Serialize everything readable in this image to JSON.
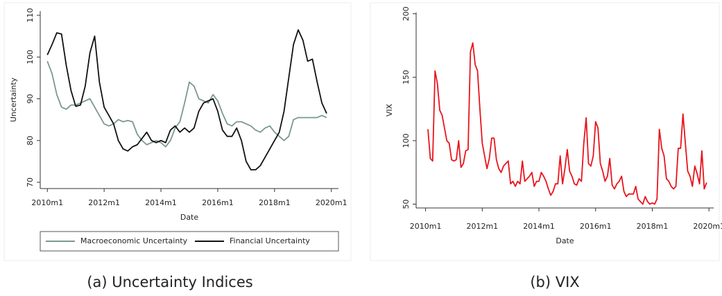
{
  "chart_data": [
    {
      "type": "line",
      "caption": "(a) Uncertainty Indices",
      "xlabel": "Date",
      "ylabel": "Uncertainty",
      "x": [
        "2010m1",
        "2010m3",
        "2010m5",
        "2010m7",
        "2010m9",
        "2010m11",
        "2011m1",
        "2011m3",
        "2011m5",
        "2011m7",
        "2011m9",
        "2011m11",
        "2012m1",
        "2012m3",
        "2012m5",
        "2012m7",
        "2012m9",
        "2012m11",
        "2013m1",
        "2013m3",
        "2013m5",
        "2013m7",
        "2013m9",
        "2013m11",
        "2014m1",
        "2014m3",
        "2014m5",
        "2014m7",
        "2014m9",
        "2014m11",
        "2015m1",
        "2015m3",
        "2015m5",
        "2015m7",
        "2015m9",
        "2015m11",
        "2016m1",
        "2016m3",
        "2016m5",
        "2016m7",
        "2016m9",
        "2016m11",
        "2017m1",
        "2017m3",
        "2017m5",
        "2017m7",
        "2017m9",
        "2017m11",
        "2018m1",
        "2018m3",
        "2018m5",
        "2018m7",
        "2018m9",
        "2018m11",
        "2019m1",
        "2019m3",
        "2019m5",
        "2019m7",
        "2019m9",
        "2019m11"
      ],
      "series": [
        {
          "name": "Macroeconomic Uncertainty",
          "color": "#7a9a8a",
          "values": [
            99,
            96,
            91,
            88,
            87.5,
            88.5,
            88.5,
            89,
            89.5,
            90,
            88,
            86,
            84,
            83.5,
            84,
            85,
            84.5,
            84.8,
            84.5,
            81.5,
            80,
            79,
            79.5,
            80,
            79.5,
            78.5,
            80,
            83,
            84.5,
            89,
            94,
            93,
            90,
            89.5,
            89,
            91,
            89.5,
            86.5,
            84,
            83.5,
            84.5,
            84.5,
            84,
            83.5,
            82.5,
            82,
            83,
            83.5,
            82,
            81,
            80,
            81,
            85,
            85.5,
            85.5,
            85.5,
            85.5,
            85.5,
            86,
            85.5
          ]
        },
        {
          "name": "Financial Uncertainty",
          "color": "#111111",
          "values": [
            100.5,
            103,
            105.8,
            105.5,
            98,
            92,
            88.2,
            88.5,
            93,
            101,
            105,
            94,
            88,
            86,
            84,
            80,
            78,
            77.5,
            78.5,
            79,
            80.5,
            82,
            80,
            79.5,
            80,
            79.5,
            82.5,
            83.5,
            82,
            83,
            82,
            83,
            87,
            89,
            89.5,
            90,
            87,
            82.5,
            81,
            81,
            83,
            80,
            75,
            73,
            73,
            74,
            76,
            78,
            80,
            82,
            87,
            95,
            103,
            106.5,
            104,
            99,
            99.5,
            94,
            89,
            86.5
          ]
        }
      ],
      "xlim": [
        "2009m10",
        "2020m4"
      ],
      "xticks": [
        "2010m1",
        "2012m1",
        "2014m1",
        "2016m1",
        "2018m1",
        "2020m1"
      ],
      "ylim": [
        68.5,
        111
      ],
      "yticks": [
        70,
        80,
        90,
        100,
        110
      ],
      "legend": "bottom"
    },
    {
      "type": "line",
      "caption": "(b) VIX",
      "xlabel": "Date",
      "ylabel": "VIX",
      "x": [
        "2010m2",
        "2010m3",
        "2010m4",
        "2010m5",
        "2010m6",
        "2010m7",
        "2010m8",
        "2010m9",
        "2010m10",
        "2010m11",
        "2010m12",
        "2011m1",
        "2011m2",
        "2011m3",
        "2011m4",
        "2011m5",
        "2011m6",
        "2011m7",
        "2011m8",
        "2011m9",
        "2011m10",
        "2011m11",
        "2011m12",
        "2012m1",
        "2012m2",
        "2012m3",
        "2012m4",
        "2012m5",
        "2012m6",
        "2012m7",
        "2012m8",
        "2012m9",
        "2012m10",
        "2012m11",
        "2012m12",
        "2013m1",
        "2013m2",
        "2013m3",
        "2013m4",
        "2013m5",
        "2013m6",
        "2013m7",
        "2013m8",
        "2013m9",
        "2013m10",
        "2013m11",
        "2013m12",
        "2014m1",
        "2014m2",
        "2014m3",
        "2014m4",
        "2014m5",
        "2014m6",
        "2014m7",
        "2014m8",
        "2014m9",
        "2014m10",
        "2014m11",
        "2014m12",
        "2015m1",
        "2015m2",
        "2015m3",
        "2015m4",
        "2015m5",
        "2015m6",
        "2015m7",
        "2015m8",
        "2015m9",
        "2015m10",
        "2015m11",
        "2015m12",
        "2016m1",
        "2016m2",
        "2016m3",
        "2016m4",
        "2016m5",
        "2016m6",
        "2016m7",
        "2016m8",
        "2016m9",
        "2016m10",
        "2016m11",
        "2016m12",
        "2017m1",
        "2017m2",
        "2017m3",
        "2017m4",
        "2017m5",
        "2017m6",
        "2017m7",
        "2017m8",
        "2017m9",
        "2017m10",
        "2017m11",
        "2017m12",
        "2018m1",
        "2018m2",
        "2018m3",
        "2018m4",
        "2018m5",
        "2018m6",
        "2018m7",
        "2018m8",
        "2018m9",
        "2018m10",
        "2018m11",
        "2018m12",
        "2019m1",
        "2019m2",
        "2019m3",
        "2019m4",
        "2019m5",
        "2019m6",
        "2019m7",
        "2019m8",
        "2019m9",
        "2019m10",
        "2019m11",
        "2019m12"
      ],
      "series": [
        {
          "name": "VIX",
          "color": "#e8141c",
          "values": [
            109,
            86,
            84,
            155,
            145,
            124,
            120,
            110,
            100,
            98,
            85,
            84,
            85,
            100,
            79,
            82,
            92,
            93,
            170,
            177,
            160,
            155,
            125,
            98,
            88,
            78,
            86,
            102,
            102,
            85,
            78,
            75,
            80,
            82,
            84,
            66,
            68,
            64,
            68,
            66,
            84,
            68,
            70,
            72,
            75,
            64,
            68,
            68,
            75,
            72,
            68,
            62,
            57,
            60,
            66,
            66,
            88,
            66,
            78,
            93,
            76,
            72,
            66,
            65,
            70,
            68,
            98,
            118,
            82,
            80,
            88,
            115,
            110,
            82,
            76,
            68,
            72,
            86,
            65,
            62,
            66,
            68,
            72,
            60,
            56,
            58,
            58,
            58,
            64,
            54,
            52,
            50,
            56,
            52,
            50,
            51,
            50,
            54,
            109,
            94,
            88,
            70,
            68,
            64,
            62,
            64,
            94,
            94,
            121,
            98,
            76,
            72,
            64,
            80,
            74,
            66,
            92,
            62,
            67
          ]
        }
      ],
      "xlim": [
        "2009m9",
        "2020m3"
      ],
      "xticks": [
        "2010m1",
        "2012m1",
        "2014m1",
        "2016m1",
        "2018m1",
        "2020m1"
      ],
      "ylim": [
        47,
        201
      ],
      "yticks": [
        50,
        100,
        150,
        200
      ]
    }
  ]
}
